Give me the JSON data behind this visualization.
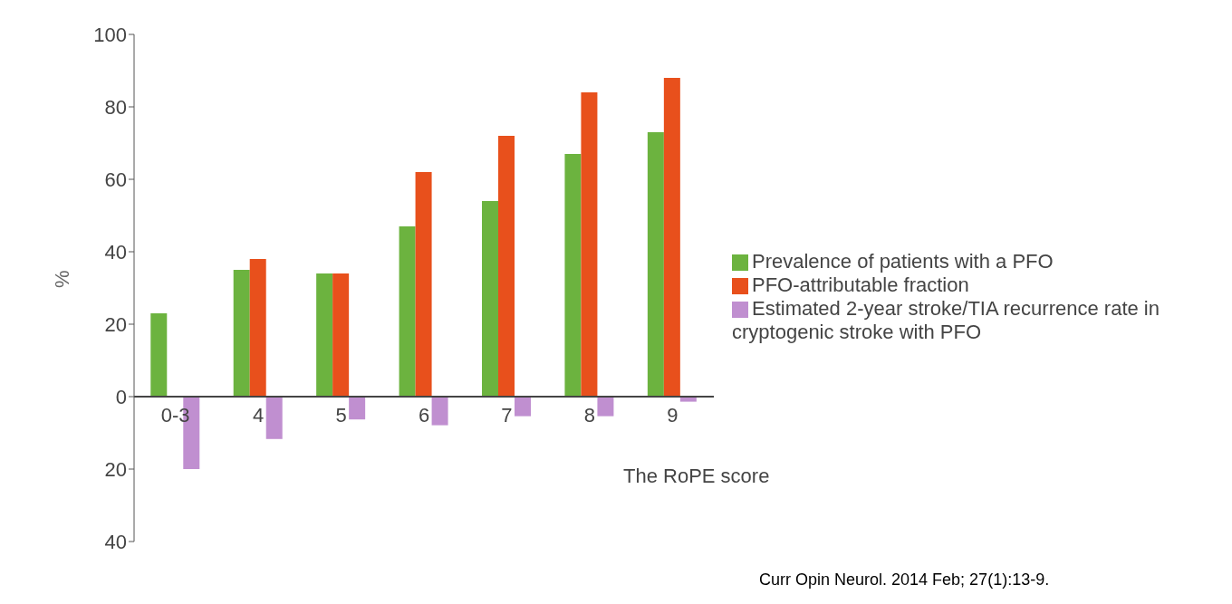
{
  "chart_data": {
    "type": "bar",
    "categories": [
      "0-3",
      "4",
      "5",
      "6",
      "7",
      "8",
      "9"
    ],
    "series": [
      {
        "name": "Prevalence of patients with a PFO",
        "color": "#6cb33f",
        "values": [
          23,
          35,
          34,
          47,
          54,
          67,
          73
        ]
      },
      {
        "name": "PFO-attributable fraction",
        "color": "#e8501c",
        "values": [
          null,
          38,
          34,
          62,
          72,
          84,
          88
        ]
      },
      {
        "name": "Estimated 2-year stroke/TIA recurrence rate in cryptogenic stroke with PFO",
        "color": "#c08fd0",
        "values": [
          -20,
          -11.7,
          -6.3,
          -7.9,
          -5.4,
          -5.4,
          -1.4
        ]
      }
    ],
    "ylim": [
      -40,
      100
    ],
    "yticks": [
      {
        "value": -40,
        "label": "40"
      },
      {
        "value": -20,
        "label": "20"
      },
      0,
      20,
      40,
      60,
      80,
      100
    ],
    "xlabel": "The RoPE score",
    "ylabel": "%",
    "legend": "right",
    "grid": false,
    "annotations": [
      "Curr Opin Neurol. 2014 Feb; 27(1):13-9."
    ]
  }
}
